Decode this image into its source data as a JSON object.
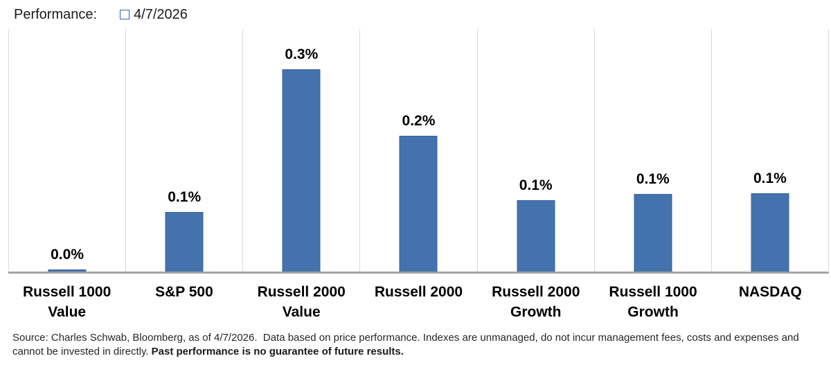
{
  "header": {
    "title": "Performance:",
    "legend": {
      "label": "4/7/2026",
      "color": "#4472ac"
    }
  },
  "chart_data": {
    "type": "bar",
    "title": "Performance:",
    "legend_position": "top",
    "grid": "vertical-category-separators",
    "categories": [
      "Russell 1000\nValue",
      "S&P 500",
      "Russell 2000\nValue",
      "Russell 2000",
      "Russell 2000\nGrowth",
      "Russell 1000\nGrowth",
      "NASDAQ"
    ],
    "series": [
      {
        "name": "4/7/2026",
        "labels": [
          "0.0%",
          "0.1%",
          "0.3%",
          "0.2%",
          "0.1%",
          "0.1%",
          "0.1%"
        ],
        "values": [
          0.0,
          0.1,
          0.3,
          0.2,
          0.1,
          0.1,
          0.1
        ],
        "values_precise_pct": [
          0.003,
          0.088,
          0.3,
          0.202,
          0.106,
          0.115,
          0.116
        ],
        "color": "#4472ac"
      }
    ],
    "xlabel": "",
    "ylabel": "",
    "ylim": [
      0,
      0.36
    ],
    "y_axis_visible": false,
    "data_labels": true
  },
  "footer": {
    "line1": "Source: Charles Schwab, Bloomberg, as of 4/7/2026.  Data based on price performance. Indexes are unmanaged, do not incur management fees, costs and expenses and",
    "line2_regular": "cannot be invested in directly. ",
    "line2_bold": "Past performance is no guarantee of future results."
  },
  "style": {
    "bar_color": "#4472ac",
    "bar_border_color": "#37629f",
    "gridline_color": "#d9d9d9",
    "axis_line_color": "#a3a3a3"
  }
}
